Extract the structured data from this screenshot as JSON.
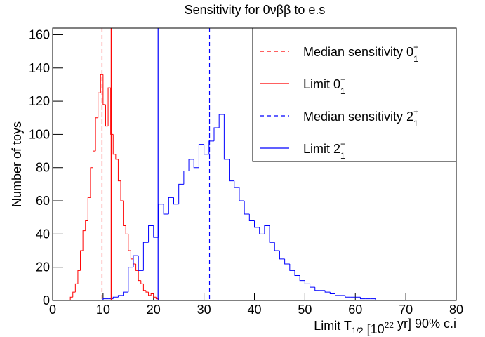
{
  "chart_data": {
    "type": "histogram",
    "title": "Sensitivity for 0νββ to e.s",
    "xlabel": [
      {
        "text": "Limit T"
      },
      {
        "sub": "1/2"
      },
      {
        "text": " [10"
      },
      {
        "sup": "22"
      },
      {
        "text": " yr] 90% c.i"
      }
    ],
    "ylabel": "Number of toys",
    "xlim": [
      0,
      80
    ],
    "ylim": [
      0,
      164
    ],
    "xticks": [
      0,
      10,
      20,
      30,
      40,
      50,
      60,
      70,
      80
    ],
    "yticks": [
      0,
      20,
      40,
      60,
      80,
      100,
      120,
      140,
      160
    ],
    "series": [
      {
        "color": "#ff0000",
        "bins": [
          3.5,
          4,
          4.5,
          5,
          5.5,
          6,
          6.5,
          7,
          7.5,
          8,
          8.5,
          9,
          9.5,
          10,
          10.5,
          11,
          11.5,
          12,
          12.5,
          13,
          13.5,
          14,
          14.5,
          15,
          15.5,
          16,
          16.5,
          17,
          17.5,
          18,
          18.5,
          19,
          19.5,
          20,
          20.5,
          21
        ],
        "values": [
          2,
          5,
          10,
          18,
          30,
          42,
          48,
          62,
          80,
          90,
          110,
          125,
          136,
          118,
          105,
          128,
          100,
          88,
          85,
          72,
          60,
          45,
          40,
          30,
          25,
          22,
          18,
          12,
          10,
          6,
          5,
          3,
          4,
          2,
          1
        ]
      },
      {
        "color": "#0000ff",
        "bins": [
          10,
          11,
          12,
          13,
          14,
          15,
          16,
          17,
          18,
          19,
          20,
          21,
          22,
          23,
          24,
          25,
          26,
          27,
          28,
          29,
          30,
          31,
          32,
          33,
          34,
          35,
          36,
          37,
          38,
          39,
          40,
          41,
          42,
          43,
          44,
          45,
          46,
          47,
          48,
          49,
          50,
          51,
          52,
          53,
          54,
          55,
          56,
          57,
          58,
          59,
          60,
          61,
          62,
          63,
          64
        ],
        "values": [
          1,
          1,
          2,
          3,
          5,
          20,
          27,
          18,
          35,
          45,
          38,
          58,
          52,
          62,
          58,
          70,
          78,
          85,
          80,
          94,
          88,
          96,
          104,
          112,
          85,
          72,
          68,
          60,
          52,
          48,
          44,
          40,
          45,
          35,
          30,
          25,
          22,
          18,
          15,
          12,
          10,
          8,
          6,
          6,
          5,
          4,
          3,
          3,
          2,
          2,
          2,
          1,
          1,
          1
        ]
      }
    ],
    "lines": [
      {
        "name": "Median sensitivity 0",
        "sub": "1",
        "sup": "+",
        "color": "#ff0000",
        "dashed": true,
        "x": 9.8
      },
      {
        "name": "Limit 0",
        "sub": "1",
        "sup": "+",
        "color": "#ff0000",
        "dashed": false,
        "x": 11.6
      },
      {
        "name": "Median sensitivity 2",
        "sub": "1",
        "sup": "+",
        "color": "#0000ff",
        "dashed": true,
        "x": 31.1
      },
      {
        "name": "Limit 2",
        "sub": "1",
        "sup": "+",
        "color": "#0000ff",
        "dashed": false,
        "x": 20.9
      }
    ],
    "legend": "top-right"
  }
}
